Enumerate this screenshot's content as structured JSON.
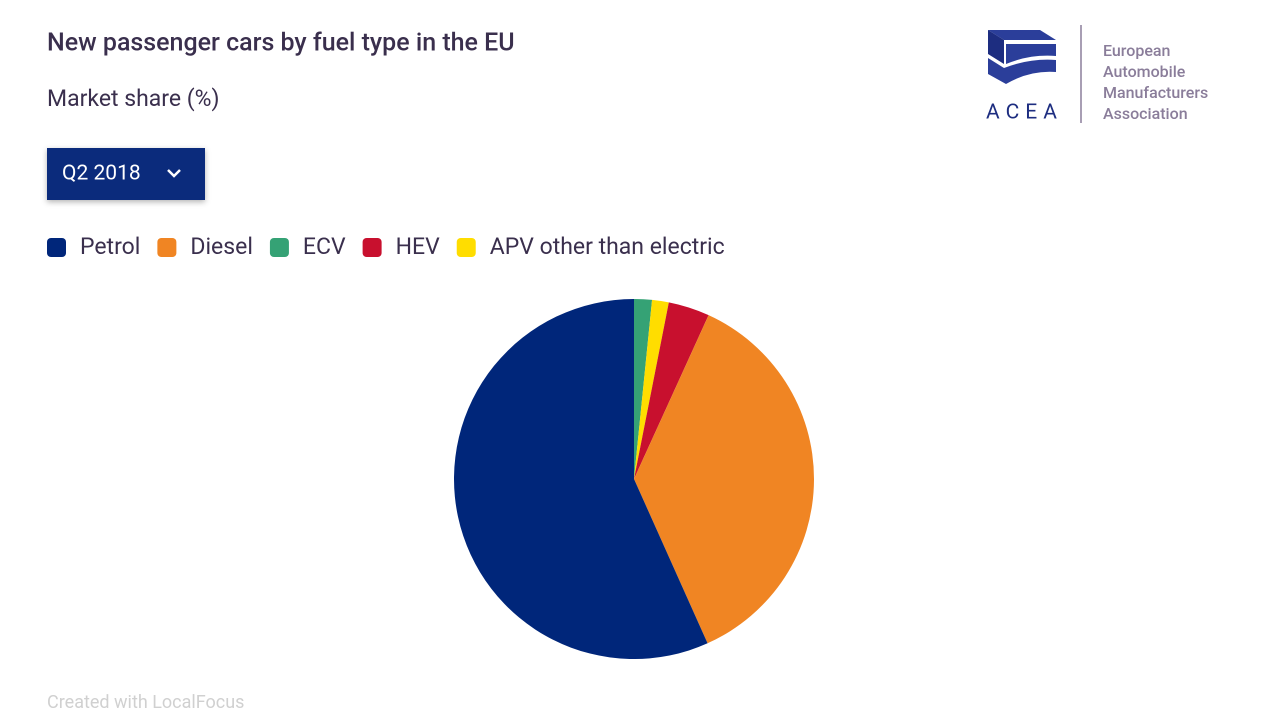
{
  "chart_data": {
    "type": "pie",
    "title": "New passenger cars by fuel type in the EU",
    "subtitle": "Market share (%)",
    "period": "Q2 2018",
    "series": [
      {
        "name": "Petrol",
        "color": "#00267a",
        "values": [
          56.7
        ]
      },
      {
        "name": "Diesel",
        "color": "#f08523",
        "values": [
          36.5
        ]
      },
      {
        "name": "ECV",
        "color": "#35a275",
        "values": [
          1.6
        ]
      },
      {
        "name": "HEV",
        "color": "#c8102e",
        "values": [
          3.7
        ]
      },
      {
        "name": "APV other than electric",
        "color": "#ffdd00",
        "values": [
          1.5
        ]
      }
    ]
  },
  "logo": {
    "acronym": "ACEA",
    "lines": [
      "European",
      "Automobile",
      "Manufacturers",
      "Association"
    ]
  },
  "credit": "Created with LocalFocus"
}
